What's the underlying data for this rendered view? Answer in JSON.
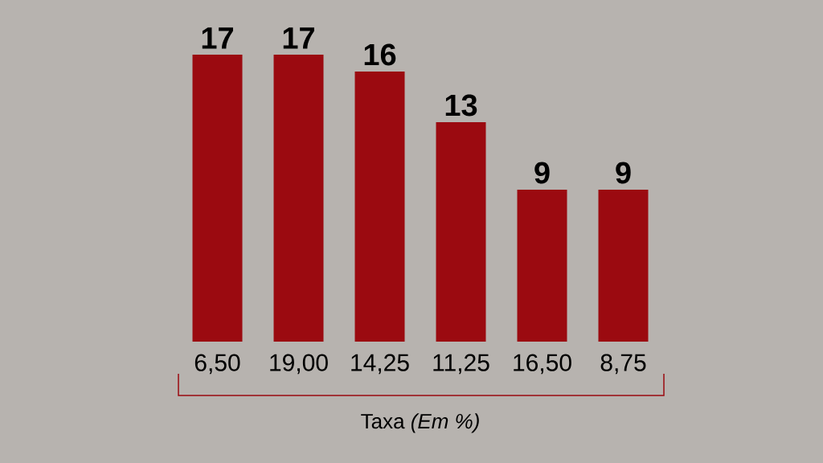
{
  "chart_data": {
    "type": "bar",
    "categories": [
      "6,50",
      "19,00",
      "14,25",
      "11,25",
      "16,50",
      "8,75"
    ],
    "values": [
      17,
      17,
      16,
      13,
      9,
      9
    ],
    "color": "#9b0a10",
    "data_labels": true,
    "xlabel": "Taxa *(Em %)*"
  }
}
